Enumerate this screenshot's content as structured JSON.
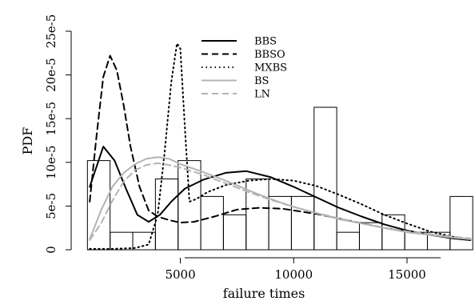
{
  "chart_data": {
    "type": "histogram",
    "xlabel": "failure times",
    "ylabel": "PDF",
    "xlim": [
      500,
      18000
    ],
    "ylim": [
      0,
      0.00025
    ],
    "x_ticks": [
      {
        "value": 5000,
        "label": "5000"
      },
      {
        "value": 10000,
        "label": "10000"
      },
      {
        "value": 15000,
        "label": "15000"
      }
    ],
    "y_ticks": [
      {
        "value": 0,
        "label": "0"
      },
      {
        "value": 5e-05,
        "label": "5e-5"
      },
      {
        "value": 0.0001,
        "label": "10e-5"
      },
      {
        "value": 0.00015,
        "label": "15e-5"
      },
      {
        "value": 0.0002,
        "label": "20e-5"
      },
      {
        "value": 0.00025,
        "label": "25e-5"
      }
    ],
    "histogram": {
      "bin_edges": [
        900,
        1900,
        2900,
        3900,
        4900,
        5900,
        6900,
        7900,
        8900,
        9900,
        10900,
        11900,
        12900,
        13900,
        14900,
        15900,
        16900,
        17900
      ],
      "densities": [
        0.000102,
        2e-05,
        2e-05,
        8.1e-05,
        0.000102,
        6.1e-05,
        4e-05,
        8.1e-05,
        6.1e-05,
        6.1e-05,
        0.000163,
        2e-05,
        3.1e-05,
        4e-05,
        2e-05,
        2e-05,
        6.1e-05
      ]
    },
    "legend_position": "top-center",
    "series": [
      {
        "name": "BBS",
        "color": "#000000",
        "dash": "solid",
        "x": [
          1000,
          1600,
          2100,
          2600,
          3100,
          3600,
          4100,
          4600,
          5200,
          6000,
          7000,
          7900,
          9000,
          10000,
          11000,
          12000,
          13000,
          14000,
          15000,
          16000,
          17000,
          17800
        ],
        "y": [
          7.2e-05,
          0.000118,
          0.000102,
          7e-05,
          4e-05,
          3.2e-05,
          4e-05,
          5.5e-05,
          7e-05,
          8e-05,
          8.8e-05,
          9e-05,
          8.3e-05,
          7.2e-05,
          6e-05,
          4.8e-05,
          3.8e-05,
          2.9e-05,
          2.2e-05,
          1.7e-05,
          1.3e-05,
          1.1e-05
        ]
      },
      {
        "name": "BBSO",
        "color": "#000000",
        "dash": "dashed",
        "x": [
          1000,
          1300,
          1600,
          1900,
          2200,
          2500,
          2800,
          3200,
          3600,
          4000,
          4500,
          5000,
          5600,
          6500,
          7500,
          8500,
          9500,
          11000,
          12500,
          14000,
          15500,
          17000,
          17800
        ],
        "y": [
          5.5e-05,
          0.00013,
          0.000198,
          0.000222,
          0.000205,
          0.000165,
          0.000118,
          7.2e-05,
          4.5e-05,
          3.8e-05,
          3.4e-05,
          3.1e-05,
          3.2e-05,
          3.8e-05,
          4.6e-05,
          4.8e-05,
          4.7e-05,
          4.1e-05,
          3.3e-05,
          2.5e-05,
          1.9e-05,
          1.4e-05,
          1.2e-05
        ]
      },
      {
        "name": "MXBS",
        "color": "#000000",
        "dash": "dotted",
        "x": [
          1000,
          2000,
          3000,
          3600,
          4000,
          4300,
          4600,
          4850,
          5000,
          5200,
          5400,
          5700,
          6200,
          7000,
          8000,
          9000,
          10000,
          11000,
          12000,
          13000,
          14000,
          15000,
          16000,
          17000,
          17800
        ],
        "y": [
          1e-06,
          1e-06,
          2e-06,
          6e-06,
          4e-05,
          0.00011,
          0.000192,
          0.000236,
          0.00023,
          0.00014,
          5.5e-05,
          5.8e-05,
          6.6e-05,
          7.4e-05,
          7.9e-05,
          8.1e-05,
          7.9e-05,
          7.3e-05,
          6.3e-05,
          5.2e-05,
          4e-05,
          3e-05,
          2.1e-05,
          1.5e-05,
          1.2e-05
        ]
      },
      {
        "name": "BS",
        "color": "#b4b4b4",
        "dash": "solid",
        "x": [
          1000,
          1500,
          2000,
          2500,
          3000,
          3500,
          4000,
          4500,
          5000,
          6000,
          7000,
          8000,
          9000,
          10000,
          11000,
          12000,
          13000,
          14000,
          15000,
          16000,
          17000,
          17800
        ],
        "y": [
          1.2e-05,
          4.5e-05,
          7.2e-05,
          8.8e-05,
          9.8e-05,
          0.000104,
          0.000106,
          0.000104,
          9.8e-05,
          8.9e-05,
          7.9e-05,
          6.8e-05,
          5.8e-05,
          4.9e-05,
          4.2e-05,
          3.5e-05,
          3e-05,
          2.5e-05,
          2e-05,
          1.7e-05,
          1.4e-05,
          1.2e-05
        ]
      },
      {
        "name": "LN",
        "color": "#b4b4b4",
        "dash": "dashed",
        "x": [
          1000,
          1500,
          2000,
          2500,
          3000,
          3500,
          4000,
          4500,
          5000,
          6000,
          7000,
          8000,
          9000,
          10000,
          11000,
          12000,
          13000,
          14000,
          15000,
          16000,
          17000,
          17800
        ],
        "y": [
          1.1e-05,
          3e-05,
          5.6e-05,
          7.8e-05,
          9.1e-05,
          9.7e-05,
          9.9e-05,
          9.7e-05,
          9.4e-05,
          8.6e-05,
          7.6e-05,
          6.6e-05,
          5.7e-05,
          4.9e-05,
          4.2e-05,
          3.6e-05,
          3e-05,
          2.5e-05,
          2.1e-05,
          1.8e-05,
          1.5e-05,
          1.3e-05
        ]
      }
    ]
  }
}
